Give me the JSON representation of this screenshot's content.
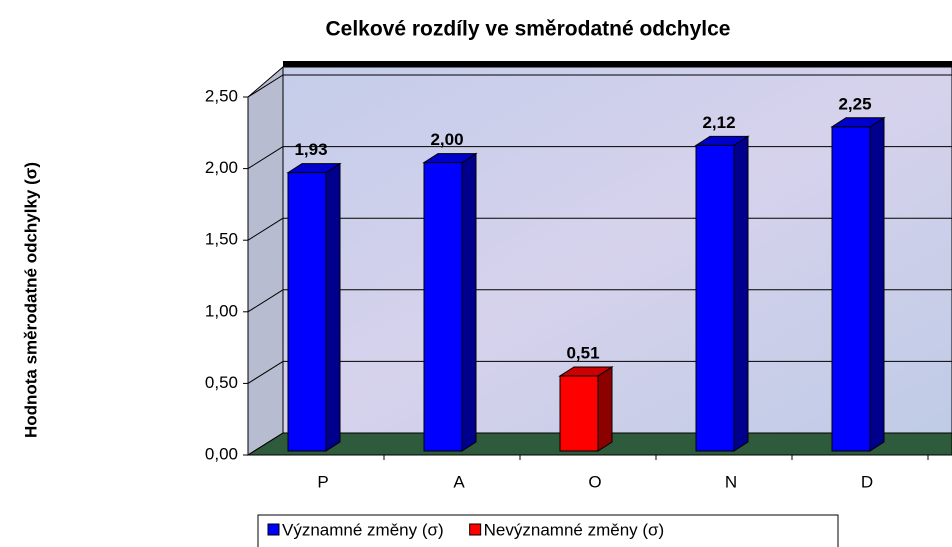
{
  "chart_data": {
    "type": "bar3d",
    "title": "Celkové rozdíly ve směrodatné odchylce",
    "y_label": "Hodnota směrodatné odchylky (σ)",
    "categories": [
      "P",
      "A",
      "O",
      "N",
      "D"
    ],
    "series": [
      {
        "name": "Významné změny (σ)",
        "color": "#0000ff",
        "values": [
          1.93,
          2.0,
          null,
          2.12,
          2.25
        ],
        "value_labels": [
          "1,93",
          "2,00",
          null,
          "2,12",
          "2,25"
        ]
      },
      {
        "name": "Nevýznamné změny (σ)",
        "color": "#ff0000",
        "values": [
          null,
          null,
          0.51,
          null,
          null
        ],
        "value_labels": [
          null,
          null,
          "0,51",
          null,
          null
        ]
      }
    ],
    "ylim": [
      0,
      2.5
    ],
    "yticks": [
      {
        "value": 0,
        "label": "0,00"
      },
      {
        "value": 0.5,
        "label": "0,50"
      },
      {
        "value": 1,
        "label": "1,00"
      },
      {
        "value": 1.5,
        "label": "1,50"
      },
      {
        "value": 2,
        "label": "2,00"
      },
      {
        "value": 2.5,
        "label": "2,50"
      }
    ],
    "grid": true,
    "legend": "bottom"
  }
}
